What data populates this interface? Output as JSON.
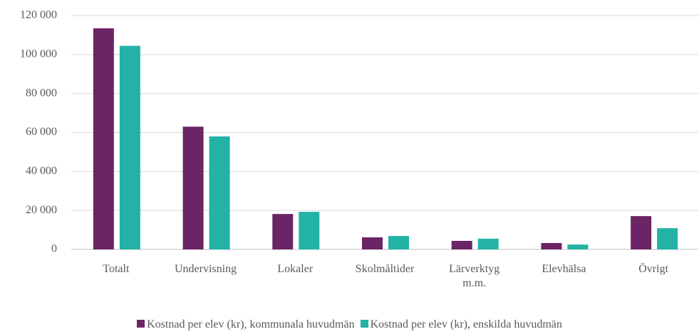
{
  "chart_data": {
    "type": "bar",
    "categories": [
      "Totalt",
      "Undervisning",
      "Lokaler",
      "Skolmåltider",
      "Lärverktyg m.m.",
      "Elevhälsa",
      "Övrigt"
    ],
    "series": [
      {
        "name": "Kostnad per elev (kr), kommunala huvudmän",
        "color": "#6b2466",
        "values": [
          113500,
          63000,
          18200,
          6200,
          4400,
          3300,
          17100
        ]
      },
      {
        "name": "Kostnad per elev (kr), enskilda huvudmän",
        "color": "#22b3a6",
        "values": [
          104500,
          58000,
          19300,
          6900,
          5500,
          2500,
          10900
        ]
      }
    ],
    "ylim": [
      0,
      120000
    ],
    "yticks": [
      0,
      {
        "value": 20000,
        "label": "20 000"
      },
      {
        "value": 40000,
        "label": "40 000"
      },
      {
        "value": 60000,
        "label": "60 000"
      },
      {
        "value": 80000,
        "label": "80 000"
      },
      {
        "value": 100000,
        "label": "100 000"
      },
      {
        "value": 120000,
        "label": "120 000"
      }
    ],
    "grid": true,
    "legend": "bottom"
  }
}
